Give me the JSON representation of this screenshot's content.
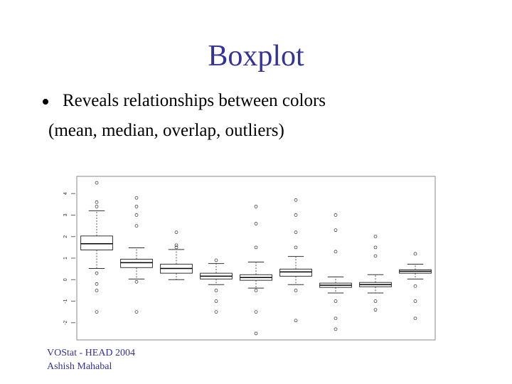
{
  "title": "Boxplot",
  "bullet": {
    "text": "Reveals relationships between colors",
    "sub": "(mean, median, overlap, outliers)"
  },
  "footer": [
    "VOStat - HEAD 2004",
    "Ashish Mahabal"
  ],
  "chart_data": {
    "type": "boxplot",
    "ylim": [
      -2.8,
      4.8
    ],
    "yticks": [
      -2,
      -1,
      0,
      1,
      2,
      3,
      4
    ],
    "boxes": [
      {
        "whisker_low": 0.52,
        "q1": 1.38,
        "median": 1.67,
        "q3": 2.03,
        "whisker_high": 3.2,
        "outliers": [
          4.5,
          3.6,
          3.4,
          0.3,
          -0.2,
          -0.5,
          -1.5
        ]
      },
      {
        "whisker_low": 0.03,
        "q1": 0.56,
        "median": 0.79,
        "q3": 0.95,
        "whisker_high": 1.48,
        "outliers": [
          3.8,
          3.4,
          3.0,
          2.5,
          -0.1,
          -1.5
        ]
      },
      {
        "whisker_low": 0,
        "q1": 0.3,
        "median": 0.52,
        "q3": 0.72,
        "whisker_high": 1.4,
        "outliers": [
          2.2,
          1.6,
          1.5
        ]
      },
      {
        "whisker_low": -0.23,
        "q1": 0.03,
        "median": 0.16,
        "q3": 0.3,
        "whisker_high": 0.75,
        "outliers": [
          0.9,
          -0.5,
          -1.0,
          -1.5
        ]
      },
      {
        "whisker_low": -0.39,
        "q1": -0.03,
        "median": 0.1,
        "q3": 0.23,
        "whisker_high": 0.82,
        "outliers": [
          3.4,
          2.6,
          1.5,
          -0.5,
          -1.5,
          -2.5
        ]
      },
      {
        "whisker_low": -0.23,
        "q1": 0.16,
        "median": 0.36,
        "q3": 0.49,
        "whisker_high": 1.08,
        "outliers": [
          3.7,
          3.0,
          2.2,
          1.5,
          -0.5,
          -1.9
        ]
      },
      {
        "whisker_low": -0.62,
        "q1": -0.36,
        "median": -0.26,
        "q3": -0.16,
        "whisker_high": 0.13,
        "outliers": [
          3.0,
          2.3,
          1.3,
          -1.0,
          -1.8,
          -2.3
        ]
      },
      {
        "whisker_low": -0.62,
        "q1": -0.33,
        "median": -0.23,
        "q3": -0.13,
        "whisker_high": 0.23,
        "outliers": [
          2.0,
          1.5,
          1.1,
          -1.0,
          -1.4
        ]
      },
      {
        "whisker_low": 0.03,
        "q1": 0.3,
        "median": 0.39,
        "q3": 0.46,
        "whisker_high": 0.72,
        "outliers": [
          1.2,
          -0.3,
          -1.0,
          -1.8
        ]
      }
    ]
  }
}
